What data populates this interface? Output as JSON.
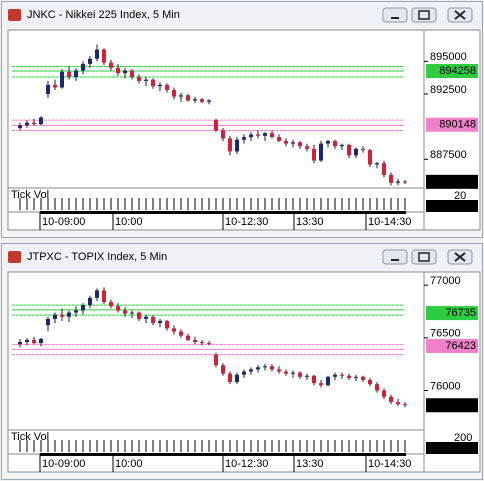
{
  "windows": [
    {
      "title": "JNKC - Nikkei 225 Index, 5 Min",
      "chart": {
        "type": "candlestick",
        "up_color": "#1c2a6b",
        "down_color": "#d0203a",
        "ylim": [
          885300,
          897400
        ],
        "yticks": [
          895000,
          892500,
          887500
        ],
        "levels": [
          {
            "value": 894258,
            "color": "#2ecc40",
            "lines": [
              894600,
              894258,
              893800
            ]
          },
          {
            "value": 890148,
            "color": "#f080c8",
            "lines": [
              890500,
              890100,
              889700
            ]
          }
        ],
        "last": 885773,
        "candles": [
          [
            889900,
            890300,
            889700,
            890100
          ],
          [
            890100,
            890500,
            889900,
            890300
          ],
          [
            890300,
            890600,
            890100,
            890200
          ],
          [
            890200,
            890800,
            890100,
            890700
          ],
          [
            892500,
            893500,
            892200,
            893200
          ],
          [
            893200,
            893600,
            892800,
            893000
          ],
          [
            893000,
            894400,
            892900,
            894200
          ],
          [
            894200,
            894600,
            893600,
            893800
          ],
          [
            893800,
            894500,
            893500,
            894300
          ],
          [
            894300,
            895000,
            894000,
            894800
          ],
          [
            894800,
            895400,
            894500,
            895200
          ],
          [
            895200,
            896300,
            895000,
            895900
          ],
          [
            895900,
            896000,
            894700,
            894900
          ],
          [
            894900,
            895100,
            894300,
            894500
          ],
          [
            894500,
            894800,
            893900,
            894100
          ],
          [
            894100,
            894500,
            893700,
            894300
          ],
          [
            894300,
            894400,
            893600,
            893800
          ],
          [
            893800,
            894000,
            893300,
            893500
          ],
          [
            893500,
            893800,
            893100,
            893600
          ],
          [
            893600,
            893700,
            892900,
            893100
          ],
          [
            893100,
            893400,
            892700,
            893200
          ],
          [
            893200,
            893300,
            892600,
            892800
          ],
          [
            892800,
            893000,
            892100,
            892300
          ],
          [
            892300,
            892600,
            891900,
            892400
          ],
          [
            892400,
            892500,
            891900,
            892000
          ],
          [
            892000,
            892300,
            891800,
            892100
          ],
          [
            892100,
            892200,
            891800,
            891900
          ],
          [
            891900,
            892100,
            891700,
            892000
          ],
          [
            890500,
            890600,
            889600,
            889700
          ],
          [
            889700,
            889900,
            888900,
            889100
          ],
          [
            889100,
            889300,
            887800,
            888100
          ],
          [
            888100,
            889200,
            887900,
            889000
          ],
          [
            889000,
            889400,
            888700,
            889200
          ],
          [
            889200,
            889600,
            888900,
            889400
          ],
          [
            889400,
            889700,
            889100,
            889300
          ],
          [
            889300,
            889600,
            888900,
            889500
          ],
          [
            889500,
            889700,
            889100,
            889200
          ],
          [
            889200,
            889400,
            888800,
            888900
          ],
          [
            888900,
            889100,
            888500,
            888700
          ],
          [
            888700,
            889000,
            888400,
            888800
          ],
          [
            888800,
            888900,
            888300,
            888500
          ],
          [
            888500,
            888700,
            888100,
            888300
          ],
          [
            888300,
            888600,
            887200,
            887400
          ],
          [
            887400,
            888900,
            887300,
            888700
          ],
          [
            888700,
            889000,
            888400,
            888900
          ],
          [
            888900,
            889000,
            888300,
            888500
          ],
          [
            888500,
            888700,
            888200,
            888600
          ],
          [
            888600,
            888700,
            887600,
            887800
          ],
          [
            887800,
            888400,
            887600,
            888300
          ],
          [
            888300,
            888500,
            888000,
            888200
          ],
          [
            888200,
            888300,
            886900,
            887100
          ],
          [
            887100,
            887300,
            886800,
            887200
          ],
          [
            887200,
            887400,
            886100,
            886300
          ],
          [
            886300,
            886500,
            885500,
            885700
          ],
          [
            885700,
            886000,
            885500,
            885800
          ],
          [
            885800,
            885900,
            885600,
            885773
          ]
        ]
      },
      "volume": {
        "label": "Tick Vol",
        "scale": 20,
        "value": 2
      },
      "time_labels": [
        "10-09:00",
        "10:00",
        "10-12:30",
        "13:30",
        "10-14:30"
      ]
    },
    {
      "title": "JTPXC - TOPIX Index, 5 Min",
      "chart": {
        "type": "candlestick",
        "up_color": "#1c2a6b",
        "down_color": "#d0203a",
        "ylim": [
          75625,
          77125
        ],
        "yticks": [
          77000,
          76500,
          76000
        ],
        "levels": [
          {
            "value": 76735,
            "color": "#2ecc40",
            "lines": [
              76810,
              76765,
              76715
            ]
          },
          {
            "value": 76423,
            "color": "#f080c8",
            "lines": [
              76435,
              76390,
              76340
            ]
          }
        ],
        "last": 75860,
        "candles": [
          [
            76440,
            76490,
            76410,
            76460
          ],
          [
            76460,
            76500,
            76430,
            76480
          ],
          [
            76480,
            76510,
            76440,
            76450
          ],
          [
            76450,
            76500,
            76420,
            76490
          ],
          [
            76620,
            76700,
            76560,
            76680
          ],
          [
            76680,
            76740,
            76640,
            76720
          ],
          [
            76720,
            76780,
            76660,
            76700
          ],
          [
            76700,
            76760,
            76650,
            76740
          ],
          [
            76740,
            76800,
            76700,
            76760
          ],
          [
            76760,
            76830,
            76720,
            76810
          ],
          [
            76810,
            76900,
            76780,
            76880
          ],
          [
            76880,
            76970,
            76850,
            76950
          ],
          [
            76950,
            76980,
            76820,
            76840
          ],
          [
            76840,
            76860,
            76780,
            76800
          ],
          [
            76800,
            76830,
            76740,
            76760
          ],
          [
            76760,
            76790,
            76700,
            76730
          ],
          [
            76730,
            76760,
            76690,
            76740
          ],
          [
            76740,
            76750,
            76660,
            76680
          ],
          [
            76680,
            76720,
            76640,
            76700
          ],
          [
            76700,
            76710,
            76620,
            76640
          ],
          [
            76640,
            76680,
            76600,
            76660
          ],
          [
            76660,
            76670,
            76570,
            76590
          ],
          [
            76590,
            76620,
            76530,
            76560
          ],
          [
            76560,
            76580,
            76500,
            76520
          ],
          [
            76520,
            76540,
            76470,
            76480
          ],
          [
            76480,
            76510,
            76440,
            76460
          ],
          [
            76460,
            76480,
            76430,
            76450
          ],
          [
            76450,
            76470,
            76430,
            76440
          ],
          [
            76340,
            76360,
            76220,
            76240
          ],
          [
            76240,
            76260,
            76140,
            76160
          ],
          [
            76160,
            76180,
            76060,
            76080
          ],
          [
            76080,
            76170,
            76060,
            76150
          ],
          [
            76150,
            76200,
            76120,
            76180
          ],
          [
            76180,
            76220,
            76150,
            76200
          ],
          [
            76200,
            76240,
            76170,
            76220
          ],
          [
            76220,
            76250,
            76190,
            76230
          ],
          [
            76230,
            76250,
            76180,
            76200
          ],
          [
            76200,
            76230,
            76160,
            76180
          ],
          [
            76180,
            76200,
            76140,
            76160
          ],
          [
            76160,
            76190,
            76120,
            76170
          ],
          [
            76170,
            76180,
            76110,
            76130
          ],
          [
            76130,
            76160,
            76100,
            76140
          ],
          [
            76140,
            76150,
            76050,
            76070
          ],
          [
            76070,
            76100,
            76030,
            76050
          ],
          [
            76050,
            76140,
            76040,
            76130
          ],
          [
            76130,
            76170,
            76100,
            76150
          ],
          [
            76150,
            76170,
            76110,
            76140
          ],
          [
            76140,
            76160,
            76100,
            76120
          ],
          [
            76120,
            76150,
            76090,
            76130
          ],
          [
            76130,
            76140,
            76080,
            76100
          ],
          [
            76100,
            76120,
            76040,
            76060
          ],
          [
            76060,
            76080,
            75980,
            76000
          ],
          [
            76000,
            76020,
            75920,
            75940
          ],
          [
            75940,
            75960,
            75870,
            75890
          ],
          [
            75890,
            75920,
            75850,
            75870
          ],
          [
            75870,
            75890,
            75840,
            75860
          ]
        ]
      },
      "volume": {
        "label": "Tick Vol",
        "scale": 200,
        "value": 4
      },
      "time_labels": [
        "10-09:00",
        "10:00",
        "10-12:30",
        "13:30",
        "10-14:30"
      ]
    }
  ]
}
